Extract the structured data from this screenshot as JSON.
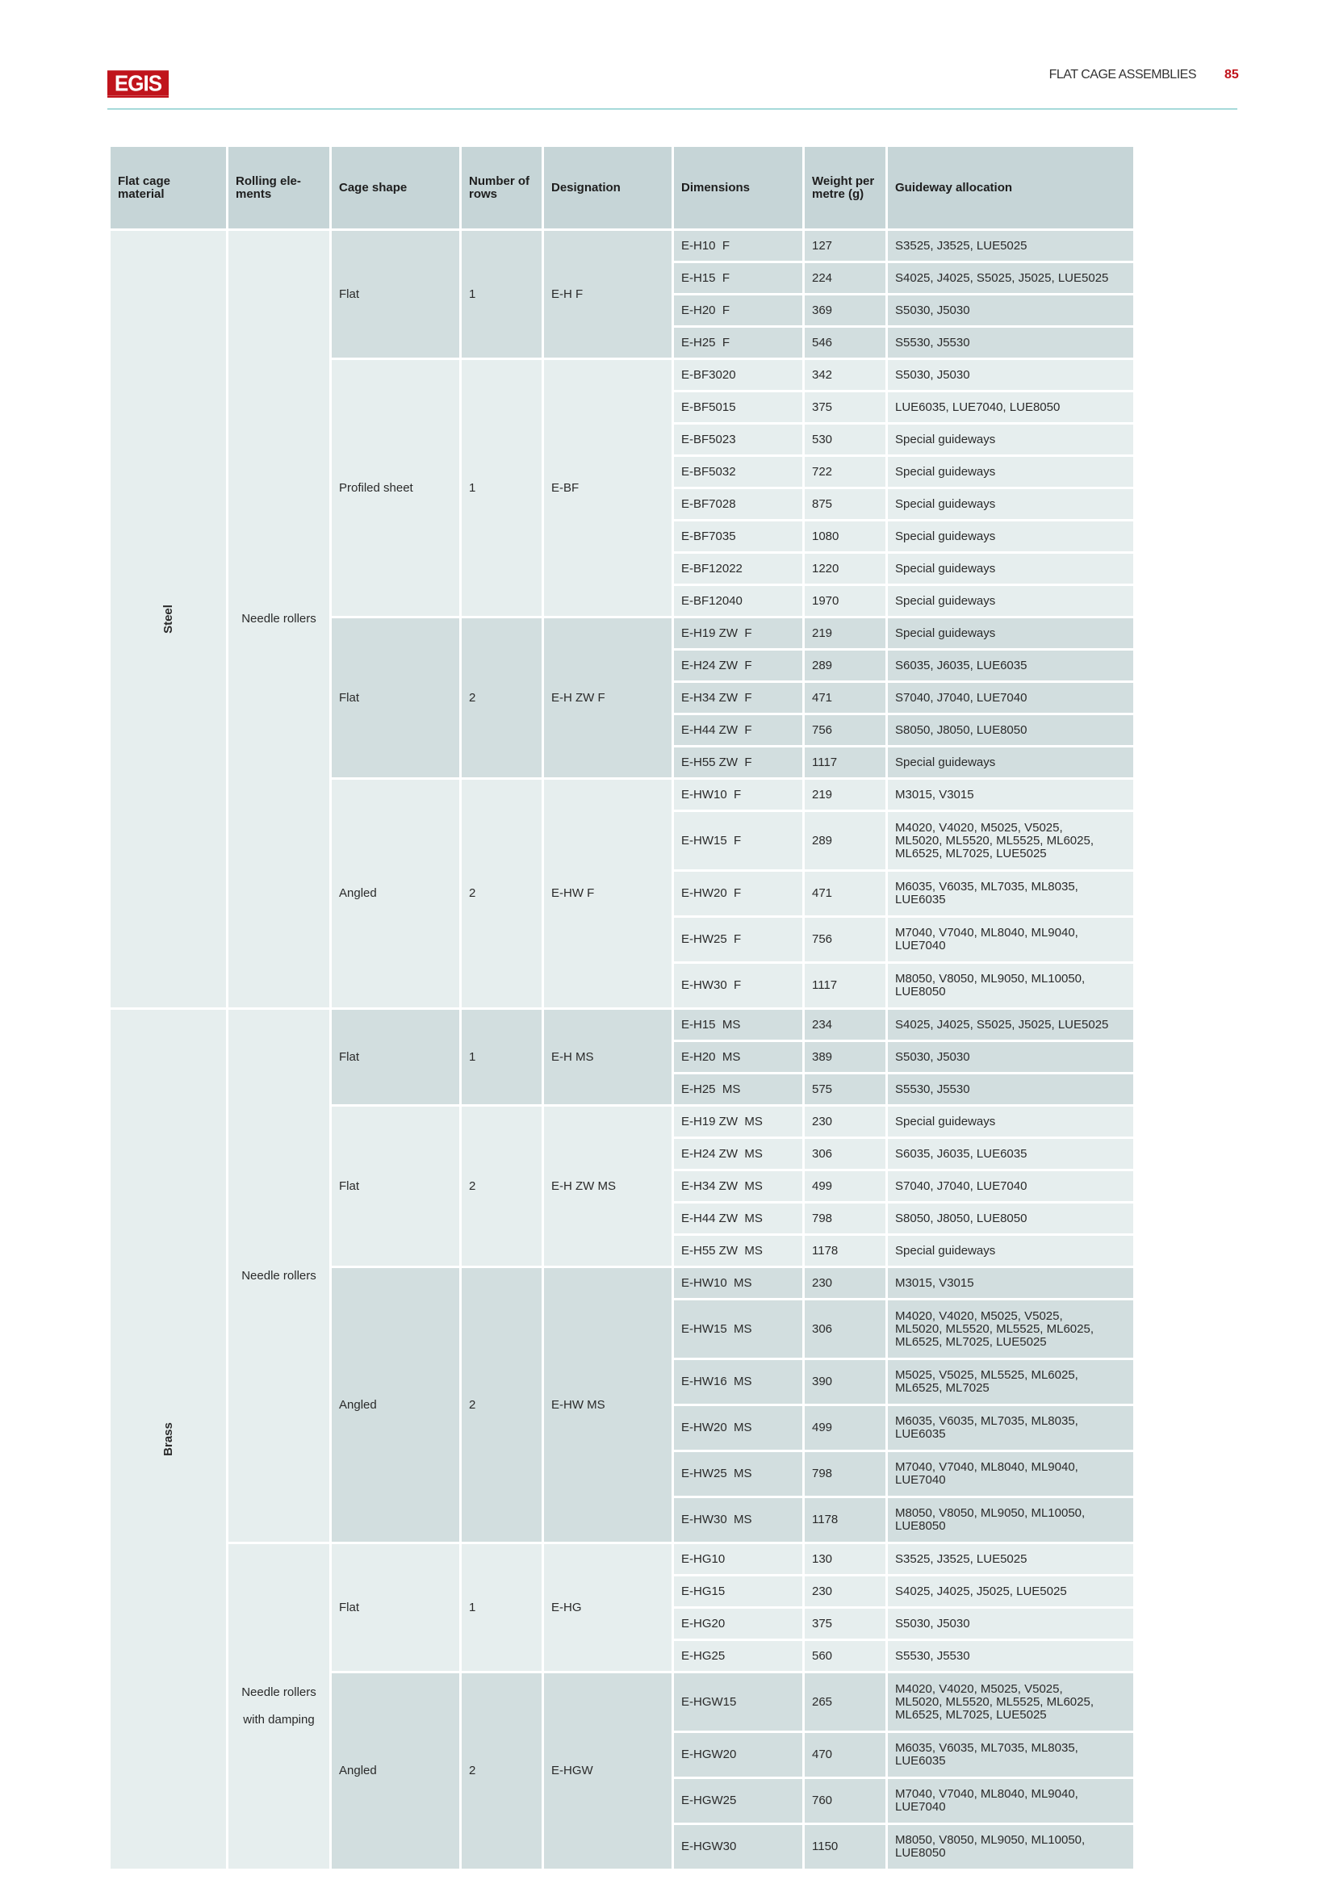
{
  "header": {
    "logo": "EGIS",
    "title": "FLAT CAGE ASSEMBLIES",
    "page": "85"
  },
  "colors": {
    "brand": "#c0141c",
    "rule": "#a6dada",
    "header_bg": "#c6d5d7",
    "dark_bg": "#d2dedf",
    "light_bg": "#e6eeee"
  },
  "columns": [
    "Flat cage\nmaterial",
    "Rolling ele-\nments",
    "Cage shape",
    "Number of\nrows",
    "Designation",
    "Dimensions",
    "Weight per\nmetre (g)",
    "Guideway allocation"
  ],
  "materials": [
    {
      "name": "Steel",
      "rolling": [
        {
          "name": "Needle rollers",
          "groups": [
            {
              "shape": "Flat",
              "rows": "1",
              "designation": "E-H  F",
              "shade": "dark",
              "items": [
                {
                  "dim": "E-H10  F",
                  "weight": "127",
                  "guide": "S3525, J3525, LUE5025"
                },
                {
                  "dim": "E-H15  F",
                  "weight": "224",
                  "guide": "S4025, J4025, S5025, J5025, LUE5025"
                },
                {
                  "dim": "E-H20  F",
                  "weight": "369",
                  "guide": "S5030, J5030"
                },
                {
                  "dim": "E-H25  F",
                  "weight": "546",
                  "guide": "S5530, J5530"
                }
              ]
            },
            {
              "shape": "Profiled sheet",
              "rows": "1",
              "designation": "E-BF",
              "shade": "light",
              "items": [
                {
                  "dim": "E-BF3020",
                  "weight": "342",
                  "guide": "S5030, J5030"
                },
                {
                  "dim": "E-BF5015",
                  "weight": "375",
                  "guide": "LUE6035, LUE7040, LUE8050"
                },
                {
                  "dim": "E-BF5023",
                  "weight": "530",
                  "guide": "Special guideways"
                },
                {
                  "dim": "E-BF5032",
                  "weight": "722",
                  "guide": "Special guideways"
                },
                {
                  "dim": "E-BF7028",
                  "weight": "875",
                  "guide": "Special guideways"
                },
                {
                  "dim": "E-BF7035",
                  "weight": "1080",
                  "guide": "Special guideways"
                },
                {
                  "dim": "E-BF12022",
                  "weight": "1220",
                  "guide": "Special guideways"
                },
                {
                  "dim": "E-BF12040",
                  "weight": "1970",
                  "guide": "Special guideways"
                }
              ]
            },
            {
              "shape": "Flat",
              "rows": "2",
              "designation": "E-H ZW  F",
              "shade": "dark",
              "items": [
                {
                  "dim": "E-H19 ZW  F",
                  "weight": "219",
                  "guide": "Special guideways"
                },
                {
                  "dim": "E-H24 ZW  F",
                  "weight": "289",
                  "guide": "S6035, J6035, LUE6035"
                },
                {
                  "dim": "E-H34 ZW  F",
                  "weight": "471",
                  "guide": "S7040, J7040, LUE7040"
                },
                {
                  "dim": "E-H44 ZW  F",
                  "weight": "756",
                  "guide": "S8050, J8050, LUE8050"
                },
                {
                  "dim": "E-H55 ZW  F",
                  "weight": "1117",
                  "guide": "Special guideways"
                }
              ]
            },
            {
              "shape": "Angled",
              "rows": "2",
              "designation": "E-HW  F",
              "shade": "light",
              "items": [
                {
                  "dim": "E-HW10  F",
                  "weight": "219",
                  "guide": "M3015, V3015"
                },
                {
                  "dim": "E-HW15  F",
                  "weight": "289",
                  "guide": "M4020, V4020, M5025, V5025,\nML5020, ML5520, ML5525, ML6025,\nML6525, ML7025, LUE5025"
                },
                {
                  "dim": "E-HW20  F",
                  "weight": "471",
                  "guide": "M6035, V6035, ML7035, ML8035,\nLUE6035"
                },
                {
                  "dim": "E-HW25  F",
                  "weight": "756",
                  "guide": "M7040, V7040, ML8040, ML9040,\nLUE7040"
                },
                {
                  "dim": "E-HW30  F",
                  "weight": "1117",
                  "guide": "M8050, V8050, ML9050, ML10050,\nLUE8050"
                }
              ]
            }
          ]
        }
      ]
    },
    {
      "name": "Brass",
      "rolling": [
        {
          "name": "Needle rollers",
          "groups": [
            {
              "shape": "Flat",
              "rows": "1",
              "designation": "E-H  MS",
              "shade": "dark",
              "items": [
                {
                  "dim": "E-H15  MS",
                  "weight": "234",
                  "guide": "S4025, J4025, S5025, J5025, LUE5025"
                },
                {
                  "dim": "E-H20  MS",
                  "weight": "389",
                  "guide": "S5030, J5030"
                },
                {
                  "dim": "E-H25  MS",
                  "weight": "575",
                  "guide": "S5530, J5530"
                }
              ]
            },
            {
              "shape": "Flat",
              "rows": "2",
              "designation": "E-H ZW  MS",
              "shade": "light",
              "items": [
                {
                  "dim": "E-H19 ZW  MS",
                  "weight": "230",
                  "guide": "Special guideways"
                },
                {
                  "dim": "E-H24 ZW  MS",
                  "weight": "306",
                  "guide": "S6035, J6035, LUE6035"
                },
                {
                  "dim": "E-H34 ZW  MS",
                  "weight": "499",
                  "guide": "S7040, J7040, LUE7040"
                },
                {
                  "dim": "E-H44 ZW  MS",
                  "weight": "798",
                  "guide": "S8050, J8050, LUE8050"
                },
                {
                  "dim": "E-H55 ZW  MS",
                  "weight": "1178",
                  "guide": "Special guideways"
                }
              ]
            },
            {
              "shape": "Angled",
              "rows": "2",
              "designation": "E-HW  MS",
              "shade": "dark",
              "items": [
                {
                  "dim": "E-HW10  MS",
                  "weight": "230",
                  "guide": "M3015, V3015"
                },
                {
                  "dim": "E-HW15  MS",
                  "weight": "306",
                  "guide": "M4020, V4020, M5025, V5025,\nML5020, ML5520, ML5525, ML6025,\nML6525, ML7025, LUE5025"
                },
                {
                  "dim": "E-HW16  MS",
                  "weight": "390",
                  "guide": "M5025, V5025, ML5525, ML6025,\nML6525, ML7025"
                },
                {
                  "dim": "E-HW20  MS",
                  "weight": "499",
                  "guide": "M6035, V6035, ML7035, ML8035,\nLUE6035"
                },
                {
                  "dim": "E-HW25  MS",
                  "weight": "798",
                  "guide": "M7040, V7040, ML8040, ML9040,\nLUE7040"
                },
                {
                  "dim": "E-HW30  MS",
                  "weight": "1178",
                  "guide": "M8050, V8050, ML9050, ML10050,\nLUE8050"
                }
              ]
            }
          ]
        },
        {
          "name": "Needle rollers\nwith damping",
          "groups": [
            {
              "shape": "Flat",
              "rows": "1",
              "designation": "E-HG",
              "shade": "light",
              "items": [
                {
                  "dim": "E-HG10",
                  "weight": "130",
                  "guide": "S3525, J3525, LUE5025"
                },
                {
                  "dim": "E-HG15",
                  "weight": "230",
                  "guide": "S4025, J4025, J5025, LUE5025"
                },
                {
                  "dim": "E-HG20",
                  "weight": "375",
                  "guide": "S5030, J5030"
                },
                {
                  "dim": "E-HG25",
                  "weight": "560",
                  "guide": "S5530, J5530"
                }
              ]
            },
            {
              "shape": "Angled",
              "rows": "2",
              "designation": "E-HGW",
              "shade": "dark",
              "items": [
                {
                  "dim": "E-HGW15",
                  "weight": "265",
                  "guide": "M4020, V4020, M5025, V5025,\nML5020, ML5520, ML5525, ML6025,\nML6525, ML7025, LUE5025"
                },
                {
                  "dim": "E-HGW20",
                  "weight": "470",
                  "guide": "M6035, V6035, ML7035, ML8035,\nLUE6035"
                },
                {
                  "dim": "E-HGW25",
                  "weight": "760",
                  "guide": "M7040, V7040, ML8040, ML9040,\nLUE7040"
                },
                {
                  "dim": "E-HGW30",
                  "weight": "1150",
                  "guide": "M8050, V8050, ML9050, ML10050,\nLUE8050"
                }
              ]
            }
          ]
        }
      ]
    }
  ]
}
